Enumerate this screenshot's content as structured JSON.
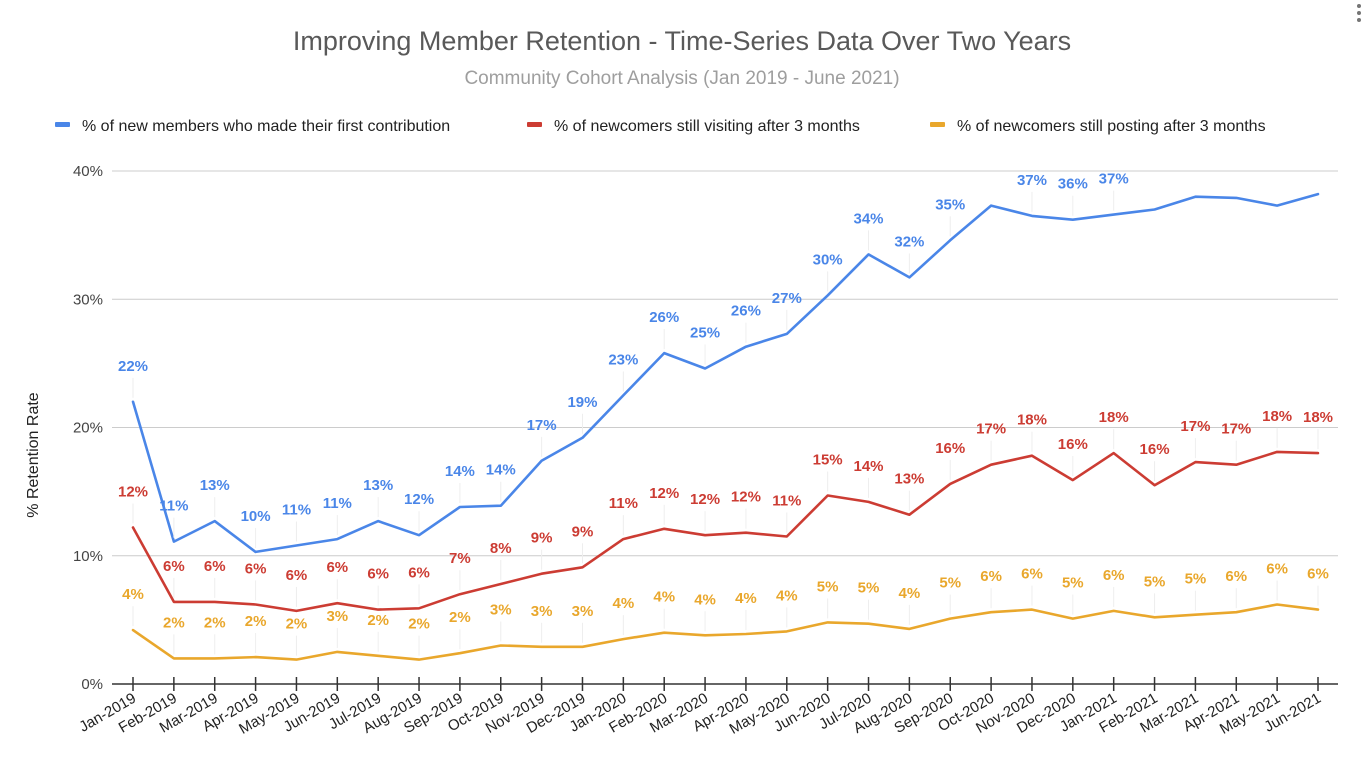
{
  "header": {
    "title": "Improving Member Retention - Time-Series Data Over Two Years",
    "subtitle": "Community Cohort Analysis (Jan 2019 - June 2021)",
    "menu_icon": "more-vert-icon"
  },
  "chart_data": {
    "type": "line",
    "title": "Improving Member Retention - Time-Series Data Over Two Years",
    "subtitle": "Community Cohort Analysis (Jan 2019 - June 2021)",
    "xlabel": "",
    "ylabel": "% Retention Rate",
    "ylim": [
      0,
      40
    ],
    "y_ticks": [
      "0%",
      "10%",
      "20%",
      "30%",
      "40%"
    ],
    "grid": true,
    "legend_position": "top",
    "categories": [
      "Jan-2019",
      "Feb-2019",
      "Mar-2019",
      "Apr-2019",
      "May-2019",
      "Jun-2019",
      "Jul-2019",
      "Aug-2019",
      "Sep-2019",
      "Oct-2019",
      "Nov-2019",
      "Dec-2019",
      "Jan-2020",
      "Feb-2020",
      "Mar-2020",
      "Apr-2020",
      "May-2020",
      "Jun-2020",
      "Jul-2020",
      "Aug-2020",
      "Sep-2020",
      "Oct-2020",
      "Nov-2020",
      "Dec-2020",
      "Jan-2021",
      "Feb-2021",
      "Mar-2021",
      "Apr-2021",
      "May-2021",
      "Jun-2021"
    ],
    "series": [
      {
        "name": "% of new members who made their first contribution",
        "color": "#4a86e8",
        "values": [
          22.0,
          11.1,
          12.7,
          10.3,
          10.8,
          11.3,
          12.7,
          11.6,
          13.8,
          13.9,
          17.4,
          19.2,
          22.5,
          25.8,
          24.6,
          26.3,
          27.3,
          30.3,
          33.5,
          31.7,
          34.6,
          37.3,
          36.5,
          36.2,
          36.6,
          37.0,
          38.0,
          37.9,
          37.3,
          38.2
        ],
        "labels": [
          "22%",
          "11%",
          "13%",
          "10%",
          "11%",
          "11%",
          "13%",
          "12%",
          "14%",
          "14%",
          "17%",
          "19%",
          "23%",
          "26%",
          "25%",
          "26%",
          "27%",
          "30%",
          "34%",
          "32%",
          "35%",
          "",
          "37%",
          "36%",
          "37%",
          "",
          "",
          "",
          "",
          ""
        ]
      },
      {
        "name": "% of newcomers still visiting after 3 months",
        "color": "#cc3c33",
        "values": [
          12.2,
          6.4,
          6.4,
          6.2,
          5.7,
          6.3,
          5.8,
          5.9,
          7.0,
          7.8,
          8.6,
          9.1,
          11.3,
          12.1,
          11.6,
          11.8,
          11.5,
          14.7,
          14.2,
          13.2,
          15.6,
          17.1,
          17.8,
          15.9,
          18.0,
          15.5,
          17.3,
          17.1,
          18.1,
          18.0
        ],
        "labels": [
          "12%",
          "6%",
          "6%",
          "6%",
          "6%",
          "6%",
          "6%",
          "6%",
          "7%",
          "8%",
          "9%",
          "9%",
          "11%",
          "12%",
          "12%",
          "12%",
          "11%",
          "15%",
          "14%",
          "13%",
          "16%",
          "17%",
          "18%",
          "16%",
          "18%",
          "16%",
          "17%",
          "17%",
          "18%",
          "18%"
        ]
      },
      {
        "name": "% of newcomers still posting after 3 months",
        "color": "#e9a72c",
        "values": [
          4.2,
          2.0,
          2.0,
          2.1,
          1.9,
          2.5,
          2.2,
          1.9,
          2.4,
          3.0,
          2.9,
          2.9,
          3.5,
          4.0,
          3.8,
          3.9,
          4.1,
          4.8,
          4.7,
          4.3,
          5.1,
          5.6,
          5.8,
          5.1,
          5.7,
          5.2,
          5.4,
          5.6,
          6.2,
          5.8
        ],
        "labels": [
          "4%",
          "2%",
          "2%",
          "2%",
          "2%",
          "3%",
          "2%",
          "2%",
          "2%",
          "3%",
          "3%",
          "3%",
          "4%",
          "4%",
          "4%",
          "4%",
          "4%",
          "5%",
          "5%",
          "4%",
          "5%",
          "6%",
          "6%",
          "5%",
          "6%",
          "5%",
          "5%",
          "6%",
          "6%",
          "6%"
        ]
      }
    ]
  }
}
